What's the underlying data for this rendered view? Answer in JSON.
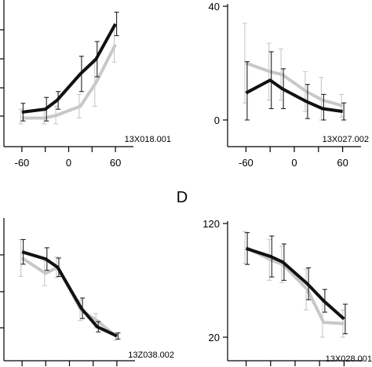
{
  "chart_data": [
    {
      "type": "line",
      "cell_id": "13X018.001",
      "x": [
        -60,
        -30,
        -15,
        15,
        35,
        60
      ],
      "xticks": [
        "-60",
        "0",
        "60"
      ],
      "yticks": [],
      "xlim": [
        -75,
        75
      ],
      "ylim": [
        0,
        40
      ],
      "series": [
        {
          "values": [
            4,
            5,
            8,
            17,
            22,
            34
          ],
          "error": [
            3,
            4,
            3,
            6,
            6,
            4
          ],
          "color": "#111111"
        },
        {
          "values": [
            2,
            2,
            3,
            6,
            14,
            27
          ],
          "error": [
            3,
            3,
            3,
            4,
            8,
            6
          ],
          "color": "#c8c8c8"
        }
      ]
    },
    {
      "type": "line",
      "cell_id": "13X027.002",
      "x": [
        -60,
        -30,
        -15,
        15,
        35,
        60
      ],
      "xticks": [
        "-60",
        "0",
        "60"
      ],
      "yticks": [
        "40",
        "0"
      ],
      "xlim": [
        -75,
        75
      ],
      "ylim": [
        0,
        40
      ],
      "series": [
        {
          "values": [
            9.5,
            14,
            11,
            6.5,
            4,
            3
          ],
          "error": [
            11,
            10,
            7,
            6,
            5,
            3
          ],
          "color": "#111111"
        },
        {
          "values": [
            20,
            17,
            16,
            10,
            7,
            5
          ],
          "error": [
            14,
            10,
            9,
            7,
            8,
            4
          ],
          "color": "#c8c8c8"
        }
      ]
    },
    {
      "type": "line",
      "cell_id": "13Z038.002",
      "x": [
        -60,
        -30,
        -15,
        15,
        35,
        60
      ],
      "xticks": [],
      "yticks": [],
      "xlim": [
        -75,
        75
      ],
      "ylim": [
        0,
        120
      ],
      "series": [
        {
          "values": [
            87,
            80,
            72,
            32,
            14,
            5
          ],
          "error": [
            12,
            11,
            9,
            10,
            5,
            3
          ],
          "color": "#111111"
        },
        {
          "values": [
            81,
            66,
            72,
            30,
            20,
            4
          ],
          "error": [
            18,
            12,
            10,
            10,
            7,
            3
          ],
          "color": "#c8c8c8"
        }
      ]
    },
    {
      "type": "line",
      "cell_id": "13X028.001",
      "x": [
        -60,
        -30,
        -15,
        15,
        35,
        60
      ],
      "xticks": [],
      "yticks": [
        "120",
        "20"
      ],
      "xlim": [
        -75,
        75
      ],
      "ylim": [
        20,
        120
      ],
      "series": [
        {
          "values": [
            98,
            91,
            86,
            67,
            52,
            36
          ],
          "error": [
            14,
            18,
            16,
            14,
            10,
            13
          ],
          "color": "#111111"
        },
        {
          "values": [
            99,
            88,
            84,
            62,
            33,
            32
          ],
          "error": [
            14,
            18,
            16,
            18,
            20,
            12
          ],
          "color": "#c8c8c8"
        }
      ]
    }
  ],
  "panel_letters": {
    "d": "D"
  }
}
